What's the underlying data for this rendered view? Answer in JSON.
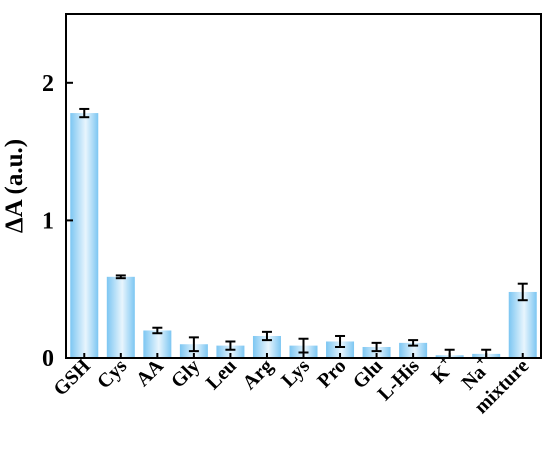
{
  "chart_data": {
    "type": "bar",
    "title": "",
    "xlabel": "",
    "ylabel": "ΔA (a.u.)",
    "ylim": [
      0,
      2.5
    ],
    "yticks": [
      0,
      1,
      2
    ],
    "grid": false,
    "bar_color": "#7cc6f2",
    "bar_color_light": "#e8f5fd",
    "categories": [
      {
        "label": "GSH"
      },
      {
        "label": "Cys"
      },
      {
        "label": "AA"
      },
      {
        "label": "Gly"
      },
      {
        "label": "Leu"
      },
      {
        "label": "Arg"
      },
      {
        "label": "Lys"
      },
      {
        "label": "Pro"
      },
      {
        "label": "Glu"
      },
      {
        "label": "L-His"
      },
      {
        "label": "K",
        "sup": "+"
      },
      {
        "label": "Na",
        "sup": "+"
      },
      {
        "label": "mixture"
      }
    ],
    "values": [
      1.78,
      0.59,
      0.2,
      0.1,
      0.09,
      0.16,
      0.09,
      0.12,
      0.08,
      0.11,
      0.02,
      0.03,
      0.48
    ],
    "errors": [
      0.03,
      0.01,
      0.02,
      0.05,
      0.03,
      0.03,
      0.05,
      0.04,
      0.03,
      0.02,
      0.04,
      0.03,
      0.06
    ]
  }
}
